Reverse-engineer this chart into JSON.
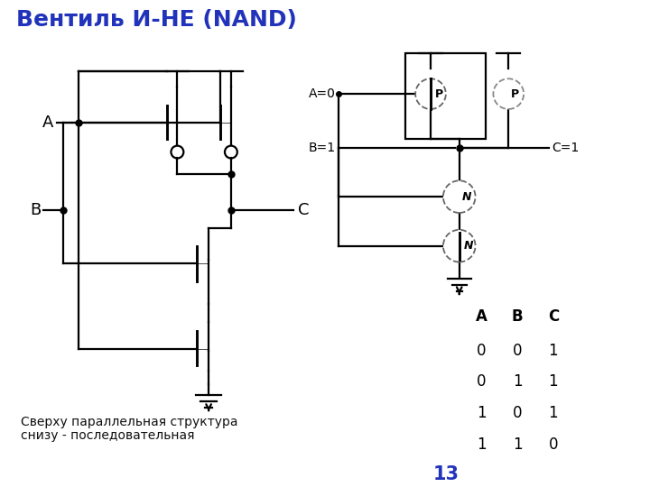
{
  "title": "Вентиль И-НЕ (NAND)",
  "title_color": "#2233BB",
  "title_fontsize": 18,
  "subtitle_line1": "Сверху параллельная структура",
  "subtitle_line2": "снизу - последовательная",
  "subtitle_fontsize": 10,
  "page_number": "13",
  "page_number_color": "#2233BB",
  "background_color": "#ffffff",
  "truth_table_headers": [
    "A",
    "B",
    "C"
  ],
  "truth_table_rows": [
    [
      0,
      0,
      1
    ],
    [
      0,
      1,
      1
    ],
    [
      1,
      0,
      1
    ],
    [
      1,
      1,
      0
    ]
  ]
}
